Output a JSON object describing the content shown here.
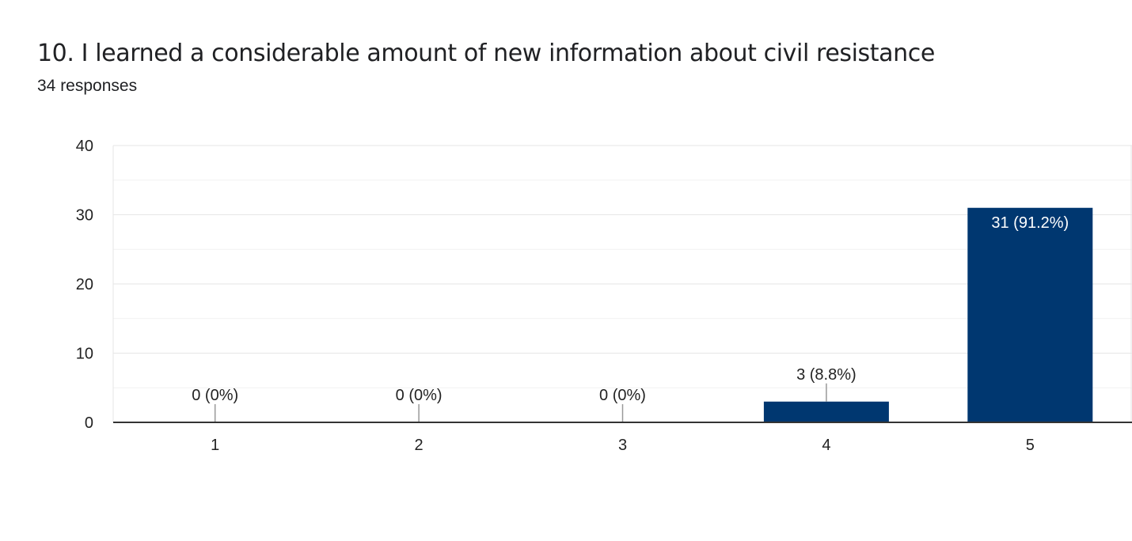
{
  "header": {
    "title": "10. I learned a considerable amount of new information about civil resistance",
    "responses": "34 responses"
  },
  "colors": {
    "bar": "#003770",
    "grid": "#e6e6e6",
    "axis": "#333333",
    "label_outside": "#222222",
    "label_inside": "#ffffff"
  },
  "chart_data": {
    "type": "bar",
    "title": "10. I learned a considerable amount of new information about civil resistance",
    "subtitle": "34 responses",
    "categories": [
      "1",
      "2",
      "3",
      "4",
      "5"
    ],
    "values": [
      0,
      0,
      0,
      3,
      31
    ],
    "data_labels": [
      "0 (0%)",
      "0 (0%)",
      "0 (0%)",
      "3 (8.8%)",
      "31 (91.2%)"
    ],
    "y_ticks": [
      0,
      10,
      20,
      30,
      40
    ],
    "ylim": [
      0,
      40
    ],
    "grid": true
  }
}
